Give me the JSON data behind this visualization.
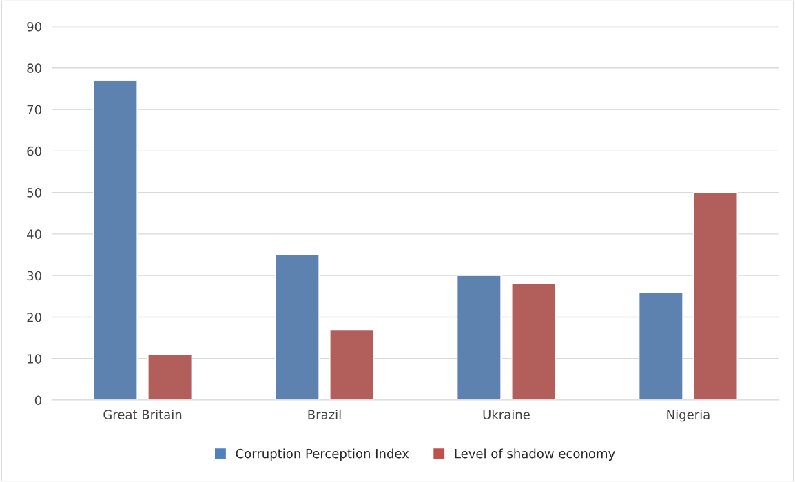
{
  "chart_data": {
    "type": "bar",
    "categories": [
      "Great Britain",
      "Brazil",
      "Ukraine",
      "Nigeria"
    ],
    "series": [
      {
        "name": "Corruption Perception Index",
        "color": "#4f81bd",
        "values": [
          77,
          35,
          30,
          26
        ]
      },
      {
        "name": "Level of shadow economy",
        "color": "#c0504d",
        "values": [
          11,
          17,
          28,
          50
        ]
      }
    ],
    "ylim": [
      0,
      90
    ],
    "yticks": [
      0,
      10,
      20,
      30,
      40,
      50,
      60,
      70,
      80,
      90
    ],
    "grid": "y",
    "legend": "bottom"
  }
}
